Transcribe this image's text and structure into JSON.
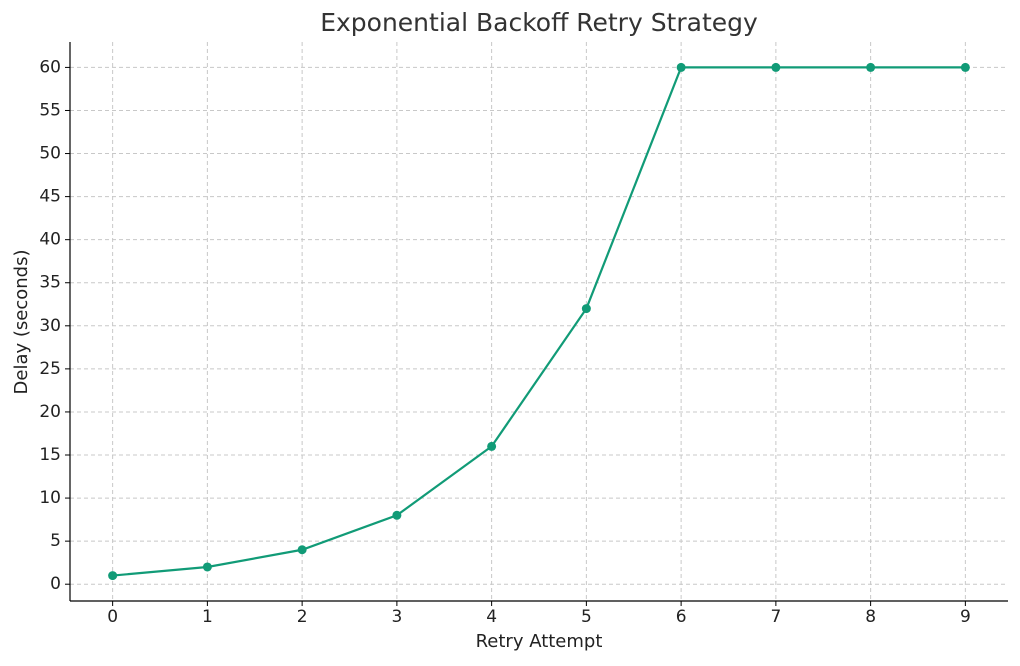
{
  "chart_data": {
    "type": "line",
    "title": "Exponential Backoff Retry Strategy",
    "x_label": "Retry Attempt",
    "y_label": "Delay (seconds)",
    "x": [
      0,
      1,
      2,
      3,
      4,
      5,
      6,
      7,
      8,
      9
    ],
    "series": [
      {
        "color": "#119b77",
        "values": [
          1,
          2,
          4,
          8,
          16,
          32,
          60,
          60,
          60,
          60
        ]
      }
    ],
    "xlim": [
      -0.45,
      9.45
    ],
    "xticks": [
      0,
      1,
      2,
      3,
      4,
      5,
      6,
      7,
      8,
      9
    ],
    "ylim": [
      -1.95,
      62.95
    ],
    "yticks": [
      0,
      5,
      10,
      15,
      20,
      25,
      30,
      35,
      40,
      45,
      50,
      55,
      60
    ],
    "grid": true
  }
}
